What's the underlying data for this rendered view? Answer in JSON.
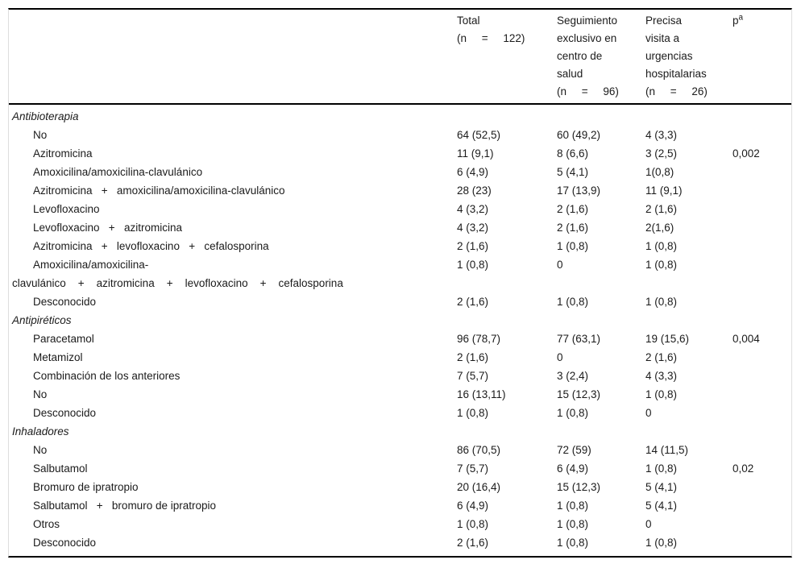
{
  "table": {
    "header": {
      "label_column": "",
      "total": "Total\n(n     =     122)",
      "seguimiento": "Seguimiento\nexclusivo en\ncentro de\nsalud\n(n     =     96)",
      "urgencias": "Precisa\nvisita a\nurgencias\nhospitalarias\n(n     =     26)",
      "p_label": "p",
      "p_sup": "a"
    },
    "sections": [
      {
        "title": "Antibioterapia",
        "rows": [
          {
            "label": "No",
            "total": "64 (52,5)",
            "seguimiento": "60 (49,2)",
            "urgencias": "4 (3,3)",
            "p": ""
          },
          {
            "label": "Azitromicina",
            "total": "11 (9,1)",
            "seguimiento": "8 (6,6)",
            "urgencias": "3 (2,5)",
            "p": "0,002"
          },
          {
            "label": "Amoxicilina/amoxicilina-clavulánico",
            "total": "6 (4,9)",
            "seguimiento": "5 (4,1)",
            "urgencias": "1(0,8)",
            "p": ""
          },
          {
            "label": "Azitromicina   +   amoxicilina/amoxicilina-clavulánico",
            "total": "28 (23)",
            "seguimiento": "17 (13,9)",
            "urgencias": "11 (9,1)",
            "p": ""
          },
          {
            "label": "Levofloxacino",
            "total": "4 (3,2)",
            "seguimiento": "2 (1,6)",
            "urgencias": "2 (1,6)",
            "p": ""
          },
          {
            "label": "Levofloxacino   +   azitromicina",
            "total": "4 (3,2)",
            "seguimiento": "2 (1,6)",
            "urgencias": "2(1,6)",
            "p": ""
          },
          {
            "label": "Azitromicina   +   levofloxacino   +   cefalosporina",
            "total": "2 (1,6)",
            "seguimiento": "1 (0,8)",
            "urgencias": "1 (0,8)",
            "p": ""
          },
          {
            "label": "Amoxicilina/amoxicilina-\nclavulánico    +    azitromicina    +    levofloxacino    +    cefalosporina",
            "total": "1 (0,8)",
            "seguimiento": "0",
            "urgencias": "1 (0,8)",
            "p": ""
          },
          {
            "label": "Desconocido",
            "total": "2 (1,6)",
            "seguimiento": "1 (0,8)",
            "urgencias": "1 (0,8)",
            "p": ""
          }
        ]
      },
      {
        "title": "Antipiréticos",
        "rows": [
          {
            "label": "Paracetamol",
            "total": "96 (78,7)",
            "seguimiento": "77 (63,1)",
            "urgencias": "19 (15,6)",
            "p": "0,004"
          },
          {
            "label": "Metamizol",
            "total": "2 (1,6)",
            "seguimiento": "0",
            "urgencias": "2 (1,6)",
            "p": ""
          },
          {
            "label": "Combinación de los anteriores",
            "total": "7 (5,7)",
            "seguimiento": "3 (2,4)",
            "urgencias": "4 (3,3)",
            "p": ""
          },
          {
            "label": "No",
            "total": "16 (13,11)",
            "seguimiento": "15 (12,3)",
            "urgencias": "1 (0,8)",
            "p": ""
          },
          {
            "label": "Desconocido",
            "total": "1 (0,8)",
            "seguimiento": "1 (0,8)",
            "urgencias": "0",
            "p": ""
          }
        ]
      },
      {
        "title": "Inhaladores",
        "rows": [
          {
            "label": "No",
            "total": "86 (70,5)",
            "seguimiento": "72 (59)",
            "urgencias": "14 (11,5)",
            "p": ""
          },
          {
            "label": "Salbutamol",
            "total": "7 (5,7)",
            "seguimiento": "6 (4,9)",
            "urgencias": "1 (0,8)",
            "p": "0,02"
          },
          {
            "label": "Bromuro de ipratropio",
            "total": "20 (16,4)",
            "seguimiento": "15 (12,3)",
            "urgencias": "5 (4,1)",
            "p": ""
          },
          {
            "label": "Salbutamol   +   bromuro de ipratropio",
            "total": "6 (4,9)",
            "seguimiento": "1 (0,8)",
            "urgencias": "5 (4,1)",
            "p": ""
          },
          {
            "label": "Otros",
            "total": "1 (0,8)",
            "seguimiento": "1 (0,8)",
            "urgencias": "0",
            "p": ""
          },
          {
            "label": "Desconocido",
            "total": "2 (1,6)",
            "seguimiento": "1 (0,8)",
            "urgencias": "1 (0,8)",
            "p": ""
          }
        ]
      }
    ]
  },
  "colors": {
    "rule": "#000000",
    "side_border": "#dedede",
    "text": "#1b1b1b"
  }
}
